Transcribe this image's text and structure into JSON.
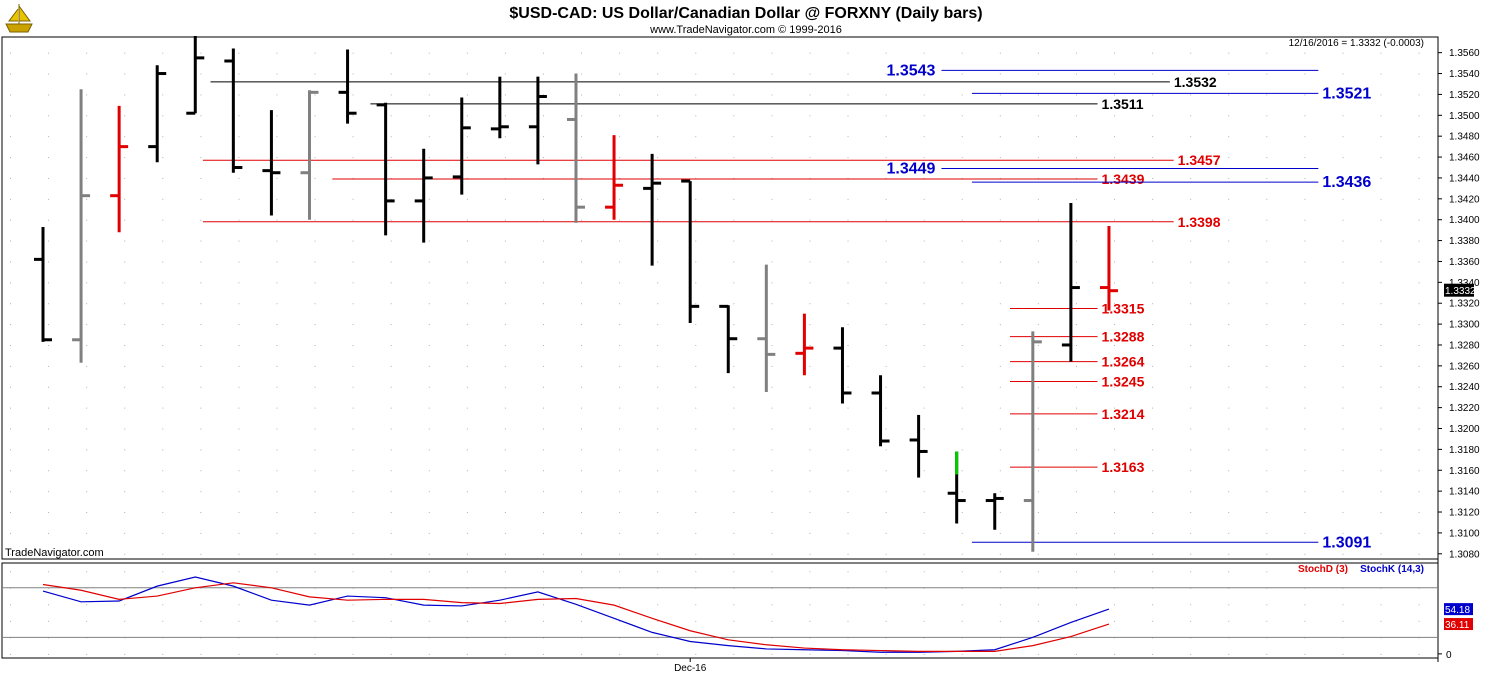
{
  "header": {
    "title": "$USD-CAD:  US Dollar/Canadian Dollar @ FORXNY  (Daily bars)",
    "subtitle": "www.TradeNavigator.com © 1999-2016",
    "quote": "12/16/2016 = 1.3332 (-0.0003)",
    "watermark": "TradeNavigator.com",
    "logo_icon": "ship-icon"
  },
  "colors": {
    "up": "#000000",
    "down": "#808080",
    "red_bar": "#e00000",
    "green": "#00cc00",
    "blue": "#0000cc",
    "red": "#e00000",
    "grid": "#c8c8c8"
  },
  "chart_data": [
    {
      "type": "ohlc",
      "title": "$USD-CAD:  US Dollar/Canadian Dollar @ FORXNY  (Daily bars)",
      "ylim": [
        1.3075,
        1.3575
      ],
      "y_ticks": [
        "1.3080",
        "1.3100",
        "1.3120",
        "1.3140",
        "1.3160",
        "1.3180",
        "1.3200",
        "1.3220",
        "1.3240",
        "1.3260",
        "1.3280",
        "1.3300",
        "1.3320",
        "1.3340",
        "1.3360",
        "1.3380",
        "1.3400",
        "1.3420",
        "1.3440",
        "1.3460",
        "1.3480",
        "1.3500",
        "1.3520",
        "1.3540",
        "1.3560"
      ],
      "x_label": "Dec-16",
      "x_label_bar": 17,
      "last_price": "1.3332",
      "bars": [
        {
          "o": 1.3362,
          "h": 1.3393,
          "l": 1.3283,
          "c": 1.3285,
          "color": "up"
        },
        {
          "o": 1.3285,
          "h": 1.3525,
          "l": 1.3263,
          "c": 1.3423,
          "color": "down"
        },
        {
          "o": 1.3423,
          "h": 1.3509,
          "l": 1.3388,
          "c": 1.347,
          "color": "red"
        },
        {
          "o": 1.347,
          "h": 1.3548,
          "l": 1.3455,
          "c": 1.354,
          "color": "up"
        },
        {
          "o": 1.3502,
          "h": 1.3576,
          "l": 1.3502,
          "c": 1.3555,
          "color": "up"
        },
        {
          "o": 1.3552,
          "h": 1.3564,
          "l": 1.3445,
          "c": 1.345,
          "color": "up"
        },
        {
          "o": 1.3447,
          "h": 1.3505,
          "l": 1.3404,
          "c": 1.3445,
          "color": "up"
        },
        {
          "o": 1.3445,
          "h": 1.3524,
          "l": 1.34,
          "c": 1.3522,
          "color": "down"
        },
        {
          "o": 1.3522,
          "h": 1.3563,
          "l": 1.3492,
          "c": 1.3502,
          "color": "up"
        },
        {
          "o": 1.351,
          "h": 1.3512,
          "l": 1.3385,
          "c": 1.3418,
          "color": "up"
        },
        {
          "o": 1.3418,
          "h": 1.3468,
          "l": 1.3378,
          "c": 1.344,
          "color": "up"
        },
        {
          "o": 1.3441,
          "h": 1.3517,
          "l": 1.3424,
          "c": 1.3488,
          "color": "up"
        },
        {
          "o": 1.3487,
          "h": 1.3537,
          "l": 1.3478,
          "c": 1.3489,
          "color": "up"
        },
        {
          "o": 1.3489,
          "h": 1.3537,
          "l": 1.3453,
          "c": 1.3518,
          "color": "up"
        },
        {
          "o": 1.3496,
          "h": 1.354,
          "l": 1.3397,
          "c": 1.3412,
          "color": "down"
        },
        {
          "o": 1.3412,
          "h": 1.3481,
          "l": 1.34,
          "c": 1.3433,
          "color": "red"
        },
        {
          "o": 1.343,
          "h": 1.3463,
          "l": 1.3356,
          "c": 1.3435,
          "color": "up"
        },
        {
          "o": 1.3437,
          "h": 1.3437,
          "l": 1.3301,
          "c": 1.3317,
          "color": "up"
        },
        {
          "o": 1.3317,
          "h": 1.3318,
          "l": 1.3253,
          "c": 1.3286,
          "color": "up"
        },
        {
          "o": 1.3286,
          "h": 1.3357,
          "l": 1.3235,
          "c": 1.3271,
          "color": "down"
        },
        {
          "o": 1.3272,
          "h": 1.331,
          "l": 1.3251,
          "c": 1.3277,
          "color": "red"
        },
        {
          "o": 1.3277,
          "h": 1.3297,
          "l": 1.3224,
          "c": 1.3234,
          "color": "up"
        },
        {
          "o": 1.3234,
          "h": 1.3251,
          "l": 1.3183,
          "c": 1.3188,
          "color": "up"
        },
        {
          "o": 1.3189,
          "h": 1.3213,
          "l": 1.3153,
          "c": 1.3178,
          "color": "up"
        },
        {
          "o": 1.3138,
          "h": 1.3178,
          "l": 1.3109,
          "c": 1.3131,
          "color": "up",
          "wick_top_color": "green"
        },
        {
          "o": 1.3131,
          "h": 1.3138,
          "l": 1.3103,
          "c": 1.3133,
          "color": "up"
        },
        {
          "o": 1.3131,
          "h": 1.3293,
          "l": 1.3082,
          "c": 1.3283,
          "color": "down"
        },
        {
          "o": 1.328,
          "h": 1.3416,
          "l": 1.3264,
          "c": 1.3335,
          "color": "up"
        },
        {
          "o": 1.3335,
          "h": 1.3394,
          "l": 1.3313,
          "c": 1.3332,
          "color": "red"
        }
      ],
      "levels": [
        {
          "label": "1.3543",
          "value": 1.3543,
          "color": "blue",
          "x0_bar": 23.6,
          "x1_bar": 33.5,
          "label_side": "left"
        },
        {
          "label": "1.3532",
          "value": 1.3532,
          "color": "black",
          "x0_bar": 4.4,
          "x1_bar": 29.6,
          "label_side": "right"
        },
        {
          "label": "1.3521",
          "value": 1.3521,
          "color": "blue",
          "x0_bar": 24.4,
          "x1_bar": 33.5,
          "label_side": "right"
        },
        {
          "label": "1.3511",
          "value": 1.3511,
          "color": "black",
          "x0_bar": 8.6,
          "x1_bar": 27.7,
          "label_side": "right"
        },
        {
          "label": "1.3457",
          "value": 1.3457,
          "color": "red",
          "x0_bar": 4.2,
          "x1_bar": 29.7,
          "label_side": "right"
        },
        {
          "label": "1.3449",
          "value": 1.3449,
          "color": "blue",
          "x0_bar": 23.6,
          "x1_bar": 33.5,
          "label_side": "left"
        },
        {
          "label": "1.3439",
          "value": 1.3439,
          "color": "red",
          "x0_bar": 7.6,
          "x1_bar": 27.7,
          "label_side": "right"
        },
        {
          "label": "1.3436",
          "value": 1.3436,
          "color": "blue",
          "x0_bar": 24.4,
          "x1_bar": 33.5,
          "label_side": "right"
        },
        {
          "label": "1.3398",
          "value": 1.3398,
          "color": "red",
          "x0_bar": 4.2,
          "x1_bar": 29.7,
          "label_side": "right"
        },
        {
          "label": "1.3315",
          "value": 1.3315,
          "color": "red",
          "x0_bar": 25.4,
          "x1_bar": 27.7,
          "label_side": "right"
        },
        {
          "label": "1.3288",
          "value": 1.3288,
          "color": "red",
          "x0_bar": 25.4,
          "x1_bar": 27.7,
          "label_side": "right"
        },
        {
          "label": "1.3264",
          "value": 1.3264,
          "color": "red",
          "x0_bar": 25.4,
          "x1_bar": 27.7,
          "label_side": "right"
        },
        {
          "label": "1.3245",
          "value": 1.3245,
          "color": "red",
          "x0_bar": 25.4,
          "x1_bar": 27.7,
          "label_side": "right"
        },
        {
          "label": "1.3214",
          "value": 1.3214,
          "color": "red",
          "x0_bar": 25.4,
          "x1_bar": 27.7,
          "label_side": "right"
        },
        {
          "label": "1.3163",
          "value": 1.3163,
          "color": "red",
          "x0_bar": 25.4,
          "x1_bar": 27.7,
          "label_side": "right"
        },
        {
          "label": "1.3091",
          "value": 1.3091,
          "color": "blue",
          "x0_bar": 24.4,
          "x1_bar": 33.5,
          "label_side": "right"
        }
      ]
    },
    {
      "type": "line",
      "title": "Stochastic",
      "ylim": [
        -5,
        110
      ],
      "y_ticks": [
        "0"
      ],
      "ref_lines": [
        20,
        80
      ],
      "legend": [
        {
          "name": "StochD (3)",
          "color": "red"
        },
        {
          "name": "StochK (14,3)",
          "color": "blue"
        }
      ],
      "series": [
        {
          "name": "StochK (14,3)",
          "color": "blue",
          "last_label": "54.18",
          "values": [
            76,
            63,
            64,
            82,
            93,
            82,
            65,
            59,
            70,
            68,
            59,
            58,
            65,
            75,
            60,
            43,
            26,
            15,
            10,
            6,
            5,
            4,
            2,
            2,
            3,
            5,
            20,
            38,
            54.18
          ]
        },
        {
          "name": "StochD (3)",
          "color": "red",
          "last_label": "36.11",
          "values": [
            84,
            77,
            66,
            70,
            80,
            86,
            80,
            69,
            65,
            66,
            66,
            62,
            61,
            66,
            67,
            59,
            43,
            28,
            17,
            11,
            7,
            5,
            4,
            3,
            3,
            3,
            10,
            21,
            36.11
          ]
        }
      ]
    }
  ]
}
